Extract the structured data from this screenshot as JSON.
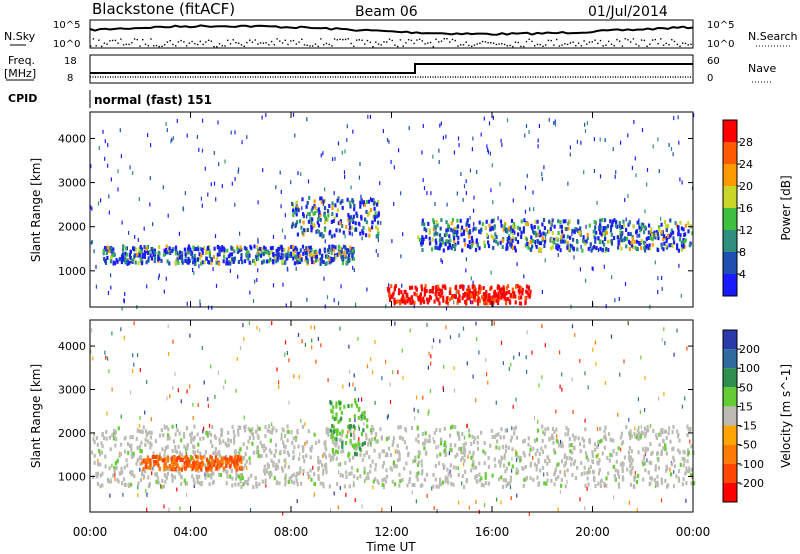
{
  "header": {
    "station": "Blackstone (fitACF)",
    "beam": "Beam 06",
    "date": "01/Jul/2014"
  },
  "top_panels": {
    "nsky_label": "N.Sky",
    "nsearch_label": "N.Search",
    "noise_ticks": [
      "10^5",
      "10^0"
    ],
    "freq_label": "Freq.",
    "freq_unit": "[MHz]",
    "freq_ticks": [
      "18",
      "8"
    ],
    "nave_label": "Nave",
    "nave_ticks": [
      "60",
      "0"
    ],
    "cpid_label": "CPID",
    "cpid_text": "normal (fast) 151"
  },
  "chart_data": [
    {
      "type": "heatmap",
      "title": "Power",
      "ylabel": "Slant Range [km]",
      "xlabel": "",
      "ylim": [
        180,
        4600
      ],
      "yticks": [
        1000,
        2000,
        3000,
        4000
      ],
      "colorbar": {
        "label": "Power [dB]",
        "ticks": [
          "4",
          "8",
          "12",
          "16",
          "20",
          "24",
          "28"
        ],
        "colors": [
          "#1a1aff",
          "#1f4fb0",
          "#2e8f7f",
          "#3fbf3f",
          "#c8d62a",
          "#ff9900",
          "#ff5a00",
          "#ff0000"
        ]
      },
      "features": [
        {
          "name": "band-lower",
          "start_hour": 0.5,
          "end_hour": 10.5,
          "range_km": [
            1200,
            1600
          ],
          "power_db": [
            12,
            24
          ]
        },
        {
          "name": "arc-peak",
          "start_hour": 8.0,
          "end_hour": 11.5,
          "range_km": [
            1800,
            2700
          ],
          "power_db": [
            8,
            20
          ]
        },
        {
          "name": "strong-echo",
          "start_hour": 11.8,
          "end_hour": 17.5,
          "range_km": [
            300,
            700
          ],
          "power_db": [
            24,
            32
          ]
        },
        {
          "name": "afternoon-band",
          "start_hour": 13.0,
          "end_hour": 24.0,
          "range_km": [
            1500,
            2200
          ],
          "power_db": [
            8,
            24
          ]
        }
      ]
    },
    {
      "type": "heatmap",
      "title": "Velocity",
      "ylabel": "Slant Range [km]",
      "xlabel": "Time UT",
      "ylim": [
        180,
        4600
      ],
      "yticks": [
        1000,
        2000,
        3000,
        4000
      ],
      "xticks": [
        "00:00",
        "04:00",
        "08:00",
        "12:00",
        "16:00",
        "20:00",
        "00:00"
      ],
      "colorbar": {
        "label": "Velocity [m s^-1]",
        "ticks": [
          "200",
          "100",
          "50",
          "15",
          "-15",
          "-50",
          "-100",
          "-200"
        ],
        "colors": [
          "#2a3aa8",
          "#2e6b9e",
          "#2e8f4f",
          "#66cc33",
          "#bcbcb4",
          "#ffa500",
          "#ff7a00",
          "#ff4500",
          "#ff0000"
        ]
      },
      "features": [
        {
          "name": "ground-scatter",
          "start_hour": 0.0,
          "end_hour": 24.0,
          "range_km": [
            800,
            2200
          ],
          "velocity_ms": [
            -15,
            15
          ]
        },
        {
          "name": "negative-patch",
          "start_hour": 2.0,
          "end_hour": 6.0,
          "range_km": [
            1200,
            1500
          ],
          "velocity_ms": [
            -200,
            -100
          ]
        },
        {
          "name": "green-streak",
          "start_hour": 9.5,
          "end_hour": 11.0,
          "range_km": [
            1500,
            2800
          ],
          "velocity_ms": [
            15,
            50
          ]
        }
      ]
    }
  ]
}
